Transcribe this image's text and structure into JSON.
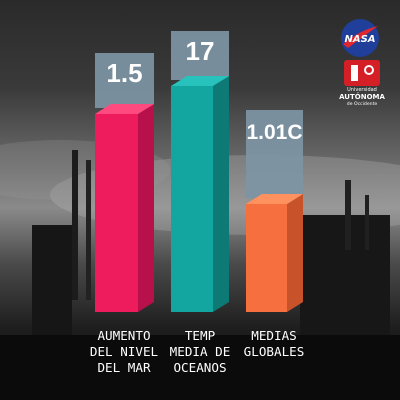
{
  "logos": {
    "nasa": "NASA",
    "uao": {
      "line1": "Universidad",
      "line2": "AUTÓNOMA",
      "line3": "de Occidente"
    }
  },
  "chart_data": {
    "type": "bar",
    "categories": [
      [
        "AUMENTO",
        "DEL NIVEL",
        "DEL MAR"
      ],
      [
        "TEMP",
        "MEDIA DE",
        "OCEANOS"
      ],
      [
        "MEDIAS",
        "GLOBALES"
      ]
    ],
    "value_labels": [
      "1.5",
      "17",
      "1.01C"
    ],
    "values": [
      1.5,
      17,
      1.01
    ],
    "colors": {
      "bar_front": [
        "#ee1c5d",
        "#13a6a1",
        "#f5703e"
      ],
      "bar_side": [
        "#b8104a",
        "#0d7a76",
        "#c8532a"
      ],
      "bar_top": [
        "#ff4a80",
        "#28c2bd",
        "#ff915e"
      ],
      "label_box": "#7e95a4"
    },
    "title": "",
    "xlabel": "",
    "ylabel": "",
    "grid": false,
    "legend": "none"
  }
}
